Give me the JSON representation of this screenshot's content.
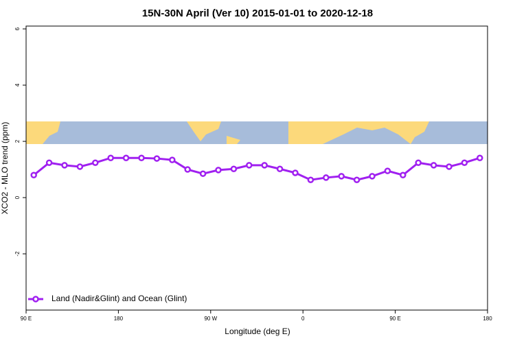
{
  "chart_data": {
    "type": "line",
    "title": "15N-30N April (Ver 10)   2015-01-01 to 2020-12-18",
    "x_label": "Longitude (deg E)",
    "y_label": "XCO2 - MLO trend (ppm)",
    "x": [
      97.5,
      112.5,
      127.5,
      142.5,
      157.5,
      172.5,
      187.5,
      202.5,
      217.5,
      232.5,
      247.5,
      262.5,
      277.5,
      292.5,
      307.5,
      322.5,
      337.5,
      352.5,
      367.5,
      382.5,
      397.5,
      412.5,
      427.5,
      442.5,
      457.5,
      472.5,
      487.5,
      502.5,
      517.5,
      532.5
    ],
    "series": [
      {
        "name": "Land (Nadir&Glint) and Ocean (Glint)",
        "color": "#a020f0",
        "values": [
          0.8,
          1.24,
          1.15,
          1.1,
          1.24,
          1.41,
          1.41,
          1.41,
          1.39,
          1.34,
          1.0,
          0.85,
          0.98,
          1.02,
          1.15,
          1.15,
          1.02,
          0.88,
          0.63,
          0.71,
          0.76,
          0.63,
          0.76,
          0.95,
          0.8,
          1.24,
          1.15,
          1.1,
          1.24,
          1.41
        ]
      }
    ],
    "xlim": [
      90,
      540
    ],
    "xticks": [
      {
        "value": 90,
        "label": "90 E"
      },
      {
        "value": 180,
        "label": "180"
      },
      {
        "value": 270,
        "label": "90 W"
      },
      {
        "value": 360,
        "label": "0"
      },
      {
        "value": 450,
        "label": "90 E"
      },
      {
        "value": 540,
        "label": "180"
      }
    ],
    "ylim": [
      -4,
      6.1
    ],
    "yticks": [
      -2,
      0,
      2,
      4,
      6
    ],
    "legend": "bottom-left"
  }
}
